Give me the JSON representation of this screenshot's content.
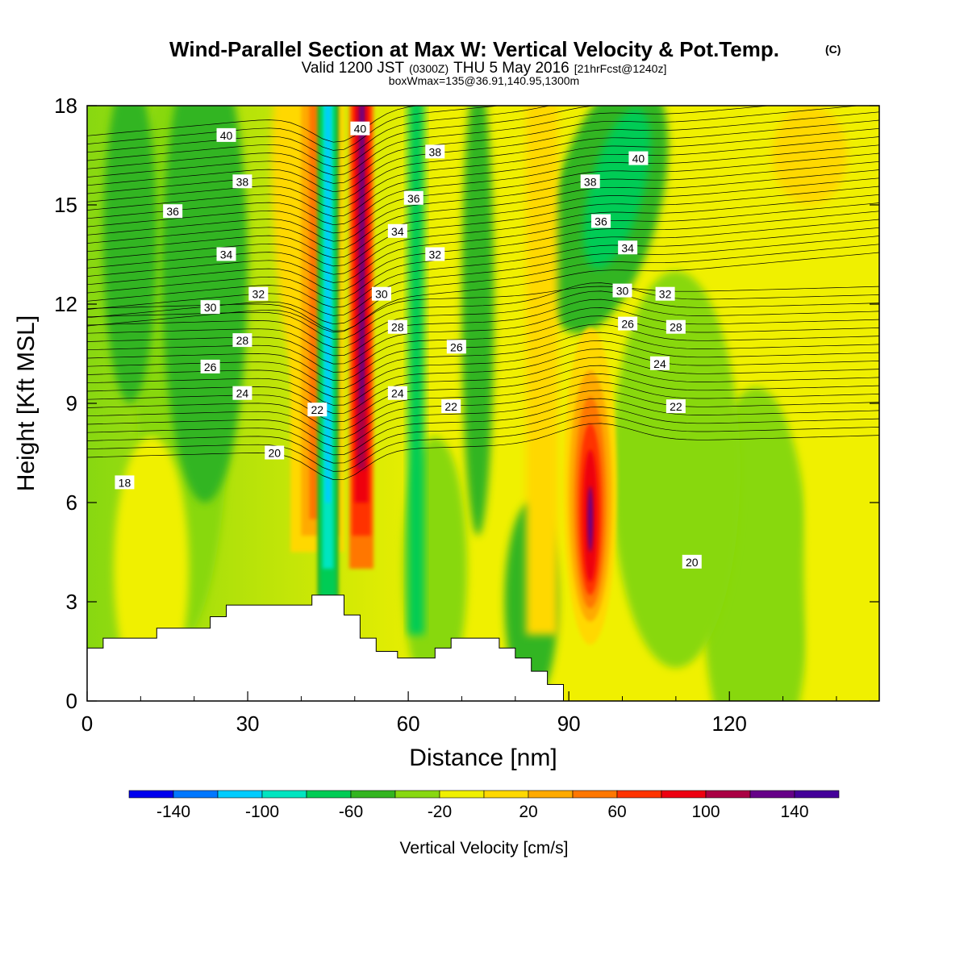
{
  "titles": {
    "main": "Wind-Parallel Section at Max W: Vertical Velocity & Pot.Temp.",
    "copyright": "(C)",
    "sub_a": "Valid 1200 JST",
    "sub_b": "(0300Z)",
    "sub_c": "THU 5 May 2016",
    "sub_d": "[21hrFcst@1240z]",
    "info": "boxWmax=135@36.91,140.95,1300m"
  },
  "chart_data": {
    "type": "heatmap",
    "xlabel": "Distance [nm]",
    "ylabel": "Height [Kft MSL]",
    "xlim": [
      0,
      148
    ],
    "ylim": [
      0,
      18
    ],
    "xticks": [
      0,
      30,
      60,
      90,
      120
    ],
    "yticks": [
      0,
      3,
      6,
      9,
      12,
      15,
      18
    ],
    "colorbar": {
      "label": "Vertical Velocity [cm/s]",
      "levels": [
        -160,
        -140,
        -120,
        -100,
        -80,
        -60,
        -40,
        -20,
        0,
        20,
        40,
        60,
        80,
        100,
        120,
        140,
        160
      ],
      "colors": [
        "#0000ee",
        "#0077ff",
        "#00ccff",
        "#00e5c0",
        "#00cc55",
        "#33b520",
        "#88d811",
        "#f0f000",
        "#ffd800",
        "#ffaa00",
        "#ff7700",
        "#ff3300",
        "#ee0011",
        "#aa0044",
        "#660088",
        "#440099"
      ],
      "tick_labels": [
        "-140",
        "-100",
        "-60",
        "-20",
        "20",
        "60",
        "100",
        "140"
      ],
      "tick_values": [
        -140,
        -100,
        -60,
        -20,
        20,
        60,
        100,
        140
      ]
    },
    "terrain": {
      "x": [
        0,
        3,
        3,
        13,
        13,
        23,
        23,
        26,
        26,
        42,
        42,
        48,
        48,
        51,
        51,
        54,
        54,
        58,
        58,
        65,
        65,
        68,
        68,
        77,
        77,
        80,
        80,
        83,
        83,
        86,
        86,
        89,
        89,
        148
      ],
      "y": [
        1.6,
        1.6,
        1.9,
        1.9,
        2.2,
        2.2,
        2.55,
        2.55,
        2.9,
        2.9,
        3.2,
        3.2,
        2.6,
        2.6,
        1.9,
        1.9,
        1.5,
        1.5,
        1.3,
        1.3,
        1.6,
        1.6,
        1.9,
        1.9,
        1.6,
        1.6,
        1.3,
        1.3,
        0.9,
        0.9,
        0.5,
        0.5,
        0,
        0
      ]
    },
    "theta_contours": [
      {
        "value": 18,
        "label": "18",
        "label_at": [
          7,
          6.6
        ]
      },
      {
        "value": 20,
        "label": "20",
        "label_at": [
          35,
          7.5
        ]
      },
      {
        "value": 20,
        "label": "20",
        "label_at": [
          113,
          4.2
        ]
      },
      {
        "value": 22,
        "label": "22",
        "label_at": [
          43,
          8.8
        ]
      },
      {
        "value": 22,
        "label": "22",
        "label_at": [
          68,
          8.9
        ]
      },
      {
        "value": 22,
        "label": "22",
        "label_at": [
          110,
          8.9
        ]
      },
      {
        "value": 24,
        "label": "24",
        "label_at": [
          29,
          9.3
        ]
      },
      {
        "value": 24,
        "label": "24",
        "label_at": [
          58,
          9.3
        ]
      },
      {
        "value": 24,
        "label": "24",
        "label_at": [
          107,
          10.2
        ]
      },
      {
        "value": 26,
        "label": "26",
        "label_at": [
          23,
          10.1
        ]
      },
      {
        "value": 26,
        "label": "26",
        "label_at": [
          69,
          10.7
        ]
      },
      {
        "value": 26,
        "label": "26",
        "label_at": [
          101,
          11.4
        ]
      },
      {
        "value": 28,
        "label": "28",
        "label_at": [
          29,
          10.9
        ]
      },
      {
        "value": 28,
        "label": "28",
        "label_at": [
          58,
          11.3
        ]
      },
      {
        "value": 28,
        "label": "28",
        "label_at": [
          110,
          11.3
        ]
      },
      {
        "value": 30,
        "label": "30",
        "label_at": [
          23,
          11.9
        ]
      },
      {
        "value": 30,
        "label": "30",
        "label_at": [
          55,
          12.3
        ]
      },
      {
        "value": 30,
        "label": "30",
        "label_at": [
          100,
          12.4
        ]
      },
      {
        "value": 32,
        "label": "32",
        "label_at": [
          32,
          12.3
        ]
      },
      {
        "value": 32,
        "label": "32",
        "label_at": [
          65,
          13.5
        ]
      },
      {
        "value": 32,
        "label": "32",
        "label_at": [
          108,
          12.3
        ]
      },
      {
        "value": 34,
        "label": "34",
        "label_at": [
          26,
          13.5
        ]
      },
      {
        "value": 34,
        "label": "34",
        "label_at": [
          58,
          14.2
        ]
      },
      {
        "value": 34,
        "label": "34",
        "label_at": [
          101,
          13.7
        ]
      },
      {
        "value": 36,
        "label": "36",
        "label_at": [
          16,
          14.8
        ]
      },
      {
        "value": 36,
        "label": "36",
        "label_at": [
          61,
          15.2
        ]
      },
      {
        "value": 36,
        "label": "36",
        "label_at": [
          96,
          14.5
        ]
      },
      {
        "value": 38,
        "label": "38",
        "label_at": [
          29,
          15.7
        ]
      },
      {
        "value": 38,
        "label": "38",
        "label_at": [
          65,
          16.6
        ]
      },
      {
        "value": 38,
        "label": "38",
        "label_at": [
          94,
          15.7
        ]
      },
      {
        "value": 40,
        "label": "40",
        "label_at": [
          26,
          17.1
        ]
      },
      {
        "value": 40,
        "label": "40",
        "label_at": [
          51,
          17.3
        ]
      },
      {
        "value": 40,
        "label": "40",
        "label_at": [
          103,
          16.4
        ]
      }
    ]
  }
}
